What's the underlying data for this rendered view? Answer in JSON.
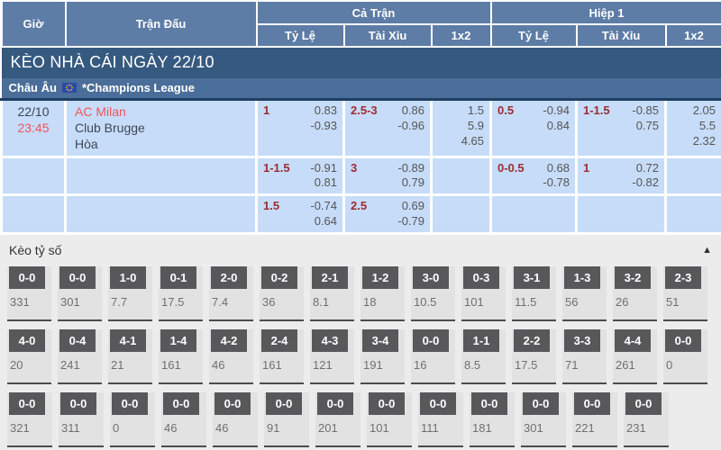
{
  "table_header": {
    "col_time": "Giờ",
    "col_match": "Trận Đấu",
    "group_full_time": "Cả Trận",
    "group_first_half": "Hiệp 1",
    "sub_handicap": "Tỷ Lệ",
    "sub_over_under": "Tài Xỉu",
    "sub_1x2": "1x2"
  },
  "banner": {
    "title": "KÈO NHÀ CÁI NGÀY 22/10"
  },
  "league_row": {
    "region": "Châu Âu",
    "league": "*Champions League"
  },
  "match": {
    "date": "22/10",
    "time": "23:45",
    "home": "AC Milan",
    "away": "Club Brugge",
    "draw_label": "Hòa"
  },
  "odds_rows": [
    {
      "ft_handicap": {
        "line": "1",
        "odd1": "0.83",
        "odd2": "-0.93"
      },
      "ft_over_under": {
        "line": "2.5-3",
        "odd1": "0.86",
        "odd2": "-0.96"
      },
      "ft_1x2": {
        "v1": "1.5",
        "v2": "5.9",
        "v3": "4.65"
      },
      "h1_handicap": {
        "line": "0.5",
        "odd1": "-0.94",
        "odd2": "0.84"
      },
      "h1_over_under": {
        "line": "1-1.5",
        "odd1": "-0.85",
        "odd2": "0.75"
      },
      "h1_1x2": {
        "v1": "2.05",
        "v2": "5.5",
        "v3": "2.32"
      }
    },
    {
      "ft_handicap": {
        "line": "1-1.5",
        "odd1": "-0.91",
        "odd2": "0.81"
      },
      "ft_over_under": {
        "line": "3",
        "odd1": "-0.89",
        "odd2": "0.79"
      },
      "ft_1x2": {
        "v1": "",
        "v2": "",
        "v3": ""
      },
      "h1_handicap": {
        "line": "0-0.5",
        "odd1": "0.68",
        "odd2": "-0.78"
      },
      "h1_over_under": {
        "line": "1",
        "odd1": "0.72",
        "odd2": "-0.82"
      },
      "h1_1x2": {
        "v1": "",
        "v2": "",
        "v3": ""
      }
    },
    {
      "ft_handicap": {
        "line": "1.5",
        "odd1": "-0.74",
        "odd2": "0.64"
      },
      "ft_over_under": {
        "line": "2.5",
        "odd1": "0.69",
        "odd2": "-0.79"
      },
      "ft_1x2": {
        "v1": "",
        "v2": "",
        "v3": ""
      },
      "h1_handicap": {
        "line": "",
        "odd1": "",
        "odd2": ""
      },
      "h1_over_under": {
        "line": "",
        "odd1": "",
        "odd2": ""
      },
      "h1_1x2": {
        "v1": "",
        "v2": "",
        "v3": ""
      }
    }
  ],
  "score_section": {
    "title": "Kèo tỷ số",
    "collapse_icon": "▲",
    "rows": [
      [
        {
          "score": "0-0",
          "odds": "331"
        },
        {
          "score": "0-0",
          "odds": "301"
        },
        {
          "score": "1-0",
          "odds": "7.7"
        },
        {
          "score": "0-1",
          "odds": "17.5"
        },
        {
          "score": "2-0",
          "odds": "7.4"
        },
        {
          "score": "0-2",
          "odds": "36"
        },
        {
          "score": "2-1",
          "odds": "8.1"
        },
        {
          "score": "1-2",
          "odds": "18"
        },
        {
          "score": "3-0",
          "odds": "10.5"
        },
        {
          "score": "0-3",
          "odds": "101"
        },
        {
          "score": "3-1",
          "odds": "11.5"
        },
        {
          "score": "1-3",
          "odds": "56"
        },
        {
          "score": "3-2",
          "odds": "26"
        },
        {
          "score": "2-3",
          "odds": "51"
        }
      ],
      [
        {
          "score": "4-0",
          "odds": "20"
        },
        {
          "score": "0-4",
          "odds": "241"
        },
        {
          "score": "4-1",
          "odds": "21"
        },
        {
          "score": "1-4",
          "odds": "161"
        },
        {
          "score": "4-2",
          "odds": "46"
        },
        {
          "score": "2-4",
          "odds": "161"
        },
        {
          "score": "4-3",
          "odds": "121"
        },
        {
          "score": "3-4",
          "odds": "191"
        },
        {
          "score": "0-0",
          "odds": "16"
        },
        {
          "score": "1-1",
          "odds": "8.5"
        },
        {
          "score": "2-2",
          "odds": "17.5"
        },
        {
          "score": "3-3",
          "odds": "71"
        },
        {
          "score": "4-4",
          "odds": "261"
        },
        {
          "score": "0-0",
          "odds": "0"
        }
      ],
      [
        {
          "score": "0-0",
          "odds": "321"
        },
        {
          "score": "0-0",
          "odds": "311"
        },
        {
          "score": "0-0",
          "odds": "0"
        },
        {
          "score": "0-0",
          "odds": "46"
        },
        {
          "score": "0-0",
          "odds": "46"
        },
        {
          "score": "0-0",
          "odds": "91"
        },
        {
          "score": "0-0",
          "odds": "201"
        },
        {
          "score": "0-0",
          "odds": "101"
        },
        {
          "score": "0-0",
          "odds": "111"
        },
        {
          "score": "0-0",
          "odds": "181"
        },
        {
          "score": "0-0",
          "odds": "301"
        },
        {
          "score": "0-0",
          "odds": "221"
        },
        {
          "score": "0-0",
          "odds": "231"
        }
      ]
    ]
  },
  "colors": {
    "header_bg": "#5d7ca6",
    "banner_bg": "#36597f",
    "league_bg": "#4a6e99",
    "row_bg": "#c7dcf8",
    "handicap_line_red": "#9b2d30",
    "team_red": "#f0545c",
    "score_box_bg": "#58585a",
    "section_bg": "#ececec"
  }
}
